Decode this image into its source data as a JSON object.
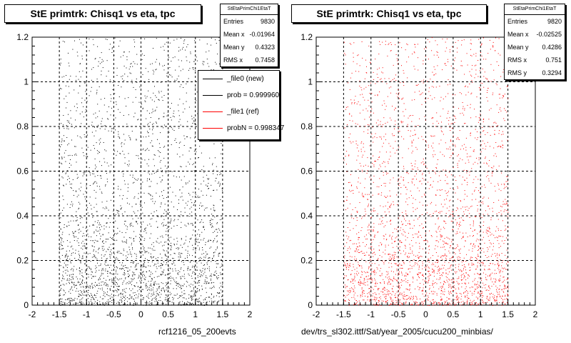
{
  "panels": [
    {
      "title": "StE primtrk: Chisq1 vs eta, tpc",
      "stats": {
        "name": "StEtaPrimChi1EtaT",
        "rows": [
          {
            "label": "Entries",
            "value": "9830"
          },
          {
            "label": "Mean x",
            "value": "-0.01964"
          },
          {
            "label": "Mean y",
            "value": "0.4323"
          },
          {
            "label": "RMS x",
            "value": "0.7458"
          }
        ]
      },
      "legend": [
        {
          "label": "_file0 (new)",
          "color": "#000000"
        },
        {
          "label": "prob = 0.999960",
          "color": "#000000"
        },
        {
          "label": "_file1 (ref)",
          "color": "#ff0000"
        },
        {
          "label": "probN = 0.998347",
          "color": "#ff0000"
        }
      ],
      "caption": "rcf1216_05_200evts"
    },
    {
      "title": "StE primtrk: Chisq1 vs eta, tpc",
      "stats": {
        "name": "StEtaPrimChi1EtaT",
        "rows": [
          {
            "label": "Entries",
            "value": "9820"
          },
          {
            "label": "Mean x",
            "value": "-0.02525"
          },
          {
            "label": "Mean y",
            "value": "0.4286"
          },
          {
            "label": "RMS x",
            "value": "0.751"
          },
          {
            "label": "RMS y",
            "value": "0.3294"
          }
        ]
      },
      "caption": "dev/trs_sl302.ittf/Sat/year_2005/cucu200_minbias/"
    }
  ],
  "chart_data": [
    {
      "type": "scatter",
      "title": "StE primtrk: Chisq1 vs eta, tpc",
      "xlim": [
        -2,
        2
      ],
      "ylim": [
        0,
        1.2
      ],
      "xticks": [
        "-2",
        "-1.5",
        "-1",
        "-0.5",
        "0",
        "0.5",
        "1",
        "1.5",
        "2"
      ],
      "yticks": [
        "0",
        "0.2",
        "0.4",
        "0.6",
        "0.8",
        "1",
        "1.2"
      ],
      "grid": true,
      "point_color": "#000000",
      "entries": 9830,
      "mean_x": -0.01964,
      "mean_y": 0.4323,
      "rms_x": 0.7458,
      "x_extent": [
        -1.5,
        1.5
      ]
    },
    {
      "type": "scatter",
      "title": "StE primtrk: Chisq1 vs eta, tpc",
      "xlim": [
        -2,
        2
      ],
      "ylim": [
        0,
        1.2
      ],
      "xticks": [
        "-2",
        "-1.5",
        "-1",
        "-0.5",
        "0",
        "0.5",
        "1",
        "1.5",
        "2"
      ],
      "yticks": [
        "0",
        "0.2",
        "0.4",
        "0.6",
        "0.8",
        "1",
        "1.2"
      ],
      "grid": true,
      "point_color": "#ff0000",
      "entries": 9820,
      "mean_x": -0.02525,
      "mean_y": 0.4286,
      "rms_x": 0.751,
      "rms_y": 0.3294,
      "x_extent": [
        -1.5,
        1.5
      ]
    }
  ]
}
